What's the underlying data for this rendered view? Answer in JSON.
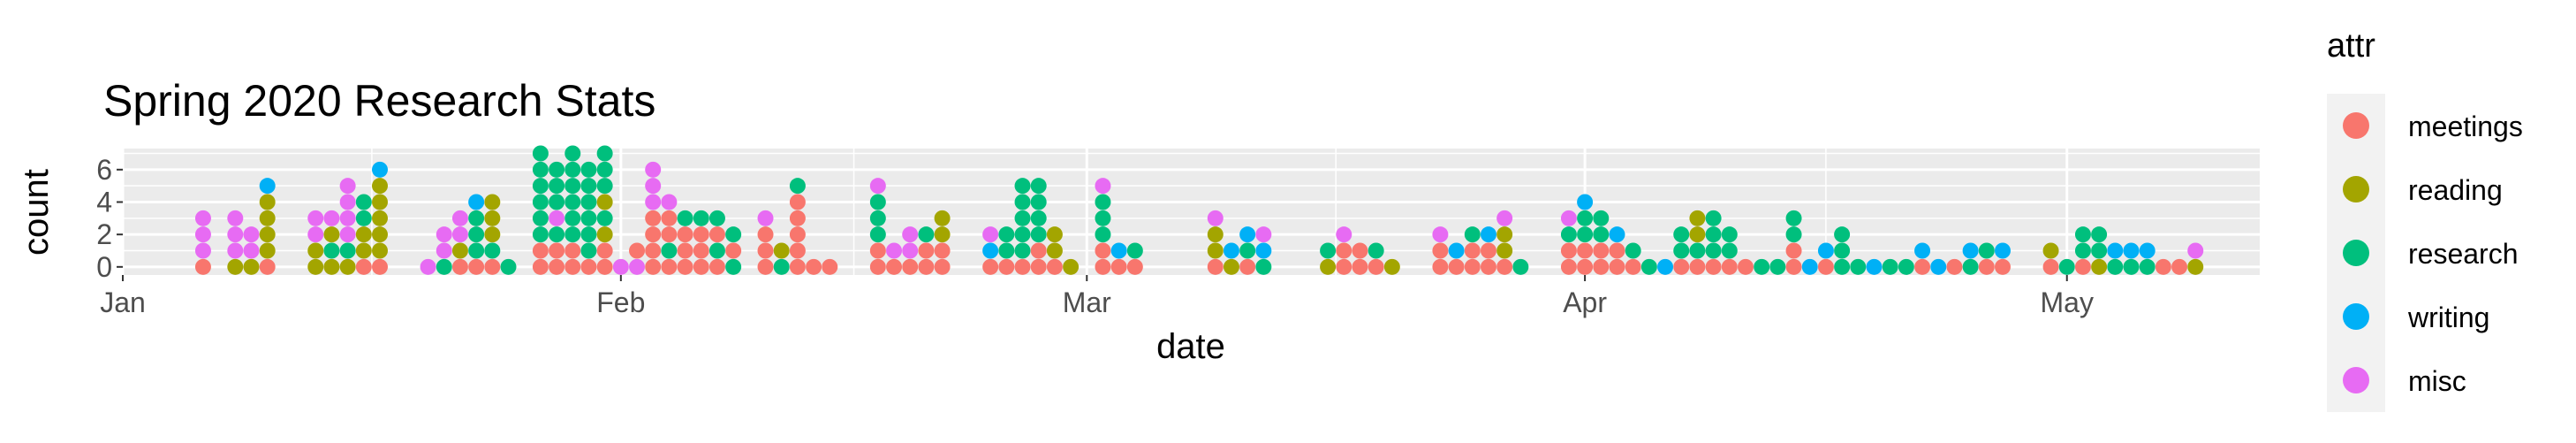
{
  "chart_data": {
    "type": "dot",
    "title": "Spring 2020 Research Stats",
    "xlabel": "date",
    "ylabel": "count",
    "x_range": [
      "2020-01-01",
      "2020-05-13"
    ],
    "y_range": [
      -0.5,
      7.3
    ],
    "y_ticks": [
      0,
      2,
      4,
      6
    ],
    "x_ticks": [
      {
        "date": "2020-01-01",
        "label": "Jan"
      },
      {
        "date": "2020-02-01",
        "label": "Feb"
      },
      {
        "date": "2020-03-01",
        "label": "Mar"
      },
      {
        "date": "2020-04-01",
        "label": "Apr"
      },
      {
        "date": "2020-05-01",
        "label": "May"
      }
    ],
    "legend": {
      "title": "attr",
      "position": "right",
      "items": [
        {
          "label": "meetings",
          "color": "#F8766D"
        },
        {
          "label": "reading",
          "color": "#A3A500"
        },
        {
          "label": "research",
          "color": "#00BF7D"
        },
        {
          "label": "writing",
          "color": "#00B0F6"
        },
        {
          "label": "misc",
          "color": "#E76BF3"
        }
      ]
    },
    "panel_background": "#EBEBEB",
    "grid": true,
    "columns": [
      {
        "date": "2020-01-06",
        "stack": [
          "meetings",
          "misc",
          "misc",
          "misc"
        ]
      },
      {
        "date": "2020-01-08",
        "stack": [
          "reading",
          "misc",
          "misc",
          "misc"
        ]
      },
      {
        "date": "2020-01-09",
        "stack": [
          "reading",
          "misc",
          "misc"
        ]
      },
      {
        "date": "2020-01-10",
        "stack": [
          "meetings",
          "reading",
          "reading",
          "reading",
          "reading",
          "writing"
        ]
      },
      {
        "date": "2020-01-13",
        "stack": [
          "reading",
          "reading",
          "misc",
          "misc"
        ]
      },
      {
        "date": "2020-01-14",
        "stack": [
          "reading",
          "research",
          "reading",
          "misc"
        ]
      },
      {
        "date": "2020-01-15",
        "stack": [
          "reading",
          "research",
          "misc",
          "misc",
          "misc",
          "misc"
        ]
      },
      {
        "date": "2020-01-16",
        "stack": [
          "meetings",
          "reading",
          "reading",
          "research",
          "research"
        ]
      },
      {
        "date": "2020-01-17",
        "stack": [
          "meetings",
          "reading",
          "reading",
          "reading",
          "reading",
          "reading",
          "writing"
        ]
      },
      {
        "date": "2020-01-20",
        "stack": [
          "misc"
        ]
      },
      {
        "date": "2020-01-21",
        "stack": [
          "research",
          "misc",
          "misc"
        ]
      },
      {
        "date": "2020-01-22",
        "stack": [
          "meetings",
          "reading",
          "misc",
          "misc"
        ]
      },
      {
        "date": "2020-01-23",
        "stack": [
          "meetings",
          "research",
          "research",
          "research",
          "writing"
        ]
      },
      {
        "date": "2020-01-24",
        "stack": [
          "meetings",
          "research",
          "reading",
          "reading",
          "reading"
        ]
      },
      {
        "date": "2020-01-25",
        "stack": [
          "research"
        ]
      },
      {
        "date": "2020-01-27",
        "stack": [
          "meetings",
          "meetings",
          "research",
          "research",
          "research",
          "research",
          "research",
          "research"
        ]
      },
      {
        "date": "2020-01-28",
        "stack": [
          "meetings",
          "meetings",
          "research",
          "misc",
          "research",
          "research",
          "research"
        ]
      },
      {
        "date": "2020-01-29",
        "stack": [
          "meetings",
          "meetings",
          "research",
          "research",
          "research",
          "research",
          "research",
          "research"
        ]
      },
      {
        "date": "2020-01-30",
        "stack": [
          "meetings",
          "research",
          "research",
          "research",
          "research",
          "research",
          "research"
        ]
      },
      {
        "date": "2020-01-31",
        "stack": [
          "meetings",
          "meetings",
          "reading",
          "research",
          "reading",
          "research",
          "research",
          "research"
        ]
      },
      {
        "date": "2020-02-01",
        "stack": [
          "misc"
        ]
      },
      {
        "date": "2020-02-02",
        "stack": [
          "misc",
          "meetings"
        ]
      },
      {
        "date": "2020-02-03",
        "stack": [
          "meetings",
          "meetings",
          "meetings",
          "meetings",
          "misc",
          "misc",
          "misc"
        ]
      },
      {
        "date": "2020-02-04",
        "stack": [
          "meetings",
          "research",
          "meetings",
          "meetings",
          "misc"
        ]
      },
      {
        "date": "2020-02-05",
        "stack": [
          "meetings",
          "meetings",
          "meetings",
          "research"
        ]
      },
      {
        "date": "2020-02-06",
        "stack": [
          "meetings",
          "meetings",
          "meetings",
          "research"
        ]
      },
      {
        "date": "2020-02-07",
        "stack": [
          "meetings",
          "research",
          "meetings",
          "research"
        ]
      },
      {
        "date": "2020-02-08",
        "stack": [
          "research",
          "meetings",
          "research"
        ]
      },
      {
        "date": "2020-02-10",
        "stack": [
          "meetings",
          "meetings",
          "meetings",
          "misc"
        ]
      },
      {
        "date": "2020-02-11",
        "stack": [
          "research",
          "reading"
        ]
      },
      {
        "date": "2020-02-12",
        "stack": [
          "meetings",
          "meetings",
          "meetings",
          "meetings",
          "meetings",
          "research"
        ]
      },
      {
        "date": "2020-02-13",
        "stack": [
          "meetings"
        ]
      },
      {
        "date": "2020-02-14",
        "stack": [
          "meetings"
        ]
      },
      {
        "date": "2020-02-17",
        "stack": [
          "meetings",
          "meetings",
          "research",
          "research",
          "research",
          "misc"
        ]
      },
      {
        "date": "2020-02-18",
        "stack": [
          "meetings",
          "misc"
        ]
      },
      {
        "date": "2020-02-19",
        "stack": [
          "meetings",
          "misc",
          "misc"
        ]
      },
      {
        "date": "2020-02-20",
        "stack": [
          "meetings",
          "meetings",
          "research"
        ]
      },
      {
        "date": "2020-02-21",
        "stack": [
          "meetings",
          "meetings",
          "reading",
          "reading"
        ]
      },
      {
        "date": "2020-02-24",
        "stack": [
          "meetings",
          "writing",
          "misc"
        ]
      },
      {
        "date": "2020-02-25",
        "stack": [
          "meetings",
          "research",
          "research"
        ]
      },
      {
        "date": "2020-02-26",
        "stack": [
          "meetings",
          "research",
          "research",
          "research",
          "research",
          "research"
        ]
      },
      {
        "date": "2020-02-27",
        "stack": [
          "meetings",
          "meetings",
          "research",
          "research",
          "research",
          "research"
        ]
      },
      {
        "date": "2020-02-28",
        "stack": [
          "meetings",
          "reading",
          "reading"
        ]
      },
      {
        "date": "2020-02-29",
        "stack": [
          "reading"
        ]
      },
      {
        "date": "2020-03-02",
        "stack": [
          "meetings",
          "meetings",
          "research",
          "research",
          "research",
          "misc"
        ]
      },
      {
        "date": "2020-03-03",
        "stack": [
          "meetings",
          "writing"
        ]
      },
      {
        "date": "2020-03-04",
        "stack": [
          "meetings",
          "research"
        ]
      },
      {
        "date": "2020-03-09",
        "stack": [
          "meetings",
          "reading",
          "reading",
          "misc"
        ]
      },
      {
        "date": "2020-03-10",
        "stack": [
          "reading",
          "writing"
        ]
      },
      {
        "date": "2020-03-11",
        "stack": [
          "meetings",
          "research",
          "writing"
        ]
      },
      {
        "date": "2020-03-12",
        "stack": [
          "research",
          "writing",
          "misc"
        ]
      },
      {
        "date": "2020-03-16",
        "stack": [
          "reading",
          "research"
        ]
      },
      {
        "date": "2020-03-17",
        "stack": [
          "meetings",
          "meetings",
          "misc"
        ]
      },
      {
        "date": "2020-03-18",
        "stack": [
          "meetings",
          "meetings"
        ]
      },
      {
        "date": "2020-03-19",
        "stack": [
          "meetings",
          "research"
        ]
      },
      {
        "date": "2020-03-20",
        "stack": [
          "reading"
        ]
      },
      {
        "date": "2020-03-23",
        "stack": [
          "meetings",
          "meetings",
          "misc"
        ]
      },
      {
        "date": "2020-03-24",
        "stack": [
          "meetings",
          "writing"
        ]
      },
      {
        "date": "2020-03-25",
        "stack": [
          "meetings",
          "meetings",
          "research"
        ]
      },
      {
        "date": "2020-03-26",
        "stack": [
          "meetings",
          "meetings",
          "writing"
        ]
      },
      {
        "date": "2020-03-27",
        "stack": [
          "meetings",
          "reading",
          "reading",
          "misc"
        ]
      },
      {
        "date": "2020-03-28",
        "stack": [
          "research"
        ]
      },
      {
        "date": "2020-03-31",
        "stack": [
          "meetings",
          "meetings",
          "research",
          "misc"
        ]
      },
      {
        "date": "2020-04-01",
        "stack": [
          "meetings",
          "meetings",
          "research",
          "research",
          "writing"
        ]
      },
      {
        "date": "2020-04-02",
        "stack": [
          "meetings",
          "meetings",
          "research",
          "research"
        ]
      },
      {
        "date": "2020-04-03",
        "stack": [
          "meetings",
          "meetings",
          "writing"
        ]
      },
      {
        "date": "2020-04-04",
        "stack": [
          "meetings",
          "research"
        ]
      },
      {
        "date": "2020-04-05",
        "stack": [
          "research"
        ]
      },
      {
        "date": "2020-04-06",
        "stack": [
          "writing"
        ]
      },
      {
        "date": "2020-04-07",
        "stack": [
          "meetings",
          "research",
          "research"
        ]
      },
      {
        "date": "2020-04-08",
        "stack": [
          "meetings",
          "research",
          "reading",
          "reading"
        ]
      },
      {
        "date": "2020-04-09",
        "stack": [
          "meetings",
          "research",
          "research",
          "research"
        ]
      },
      {
        "date": "2020-04-10",
        "stack": [
          "meetings",
          "research",
          "research"
        ]
      },
      {
        "date": "2020-04-11",
        "stack": [
          "meetings"
        ]
      },
      {
        "date": "2020-04-12",
        "stack": [
          "research"
        ]
      },
      {
        "date": "2020-04-13",
        "stack": [
          "research"
        ]
      },
      {
        "date": "2020-04-14",
        "stack": [
          "meetings",
          "meetings",
          "research",
          "research"
        ]
      },
      {
        "date": "2020-04-15",
        "stack": [
          "writing"
        ]
      },
      {
        "date": "2020-04-16",
        "stack": [
          "meetings",
          "writing"
        ]
      },
      {
        "date": "2020-04-17",
        "stack": [
          "research",
          "research",
          "research"
        ]
      },
      {
        "date": "2020-04-18",
        "stack": [
          "research"
        ]
      },
      {
        "date": "2020-04-19",
        "stack": [
          "writing"
        ]
      },
      {
        "date": "2020-04-20",
        "stack": [
          "research"
        ]
      },
      {
        "date": "2020-04-21",
        "stack": [
          "research"
        ]
      },
      {
        "date": "2020-04-22",
        "stack": [
          "meetings",
          "writing"
        ]
      },
      {
        "date": "2020-04-23",
        "stack": [
          "writing"
        ]
      },
      {
        "date": "2020-04-24",
        "stack": [
          "meetings"
        ]
      },
      {
        "date": "2020-04-25",
        "stack": [
          "research",
          "writing"
        ]
      },
      {
        "date": "2020-04-26",
        "stack": [
          "meetings",
          "research"
        ]
      },
      {
        "date": "2020-04-27",
        "stack": [
          "meetings",
          "writing"
        ]
      },
      {
        "date": "2020-04-30",
        "stack": [
          "meetings",
          "reading"
        ]
      },
      {
        "date": "2020-05-01",
        "stack": [
          "research"
        ]
      },
      {
        "date": "2020-05-02",
        "stack": [
          "meetings",
          "research",
          "research"
        ]
      },
      {
        "date": "2020-05-03",
        "stack": [
          "reading",
          "research",
          "research"
        ]
      },
      {
        "date": "2020-05-04",
        "stack": [
          "research",
          "writing"
        ]
      },
      {
        "date": "2020-05-05",
        "stack": [
          "research",
          "writing"
        ]
      },
      {
        "date": "2020-05-06",
        "stack": [
          "research",
          "writing"
        ]
      },
      {
        "date": "2020-05-07",
        "stack": [
          "meetings"
        ]
      },
      {
        "date": "2020-05-08",
        "stack": [
          "meetings"
        ]
      },
      {
        "date": "2020-05-09",
        "stack": [
          "reading",
          "misc"
        ]
      }
    ]
  }
}
